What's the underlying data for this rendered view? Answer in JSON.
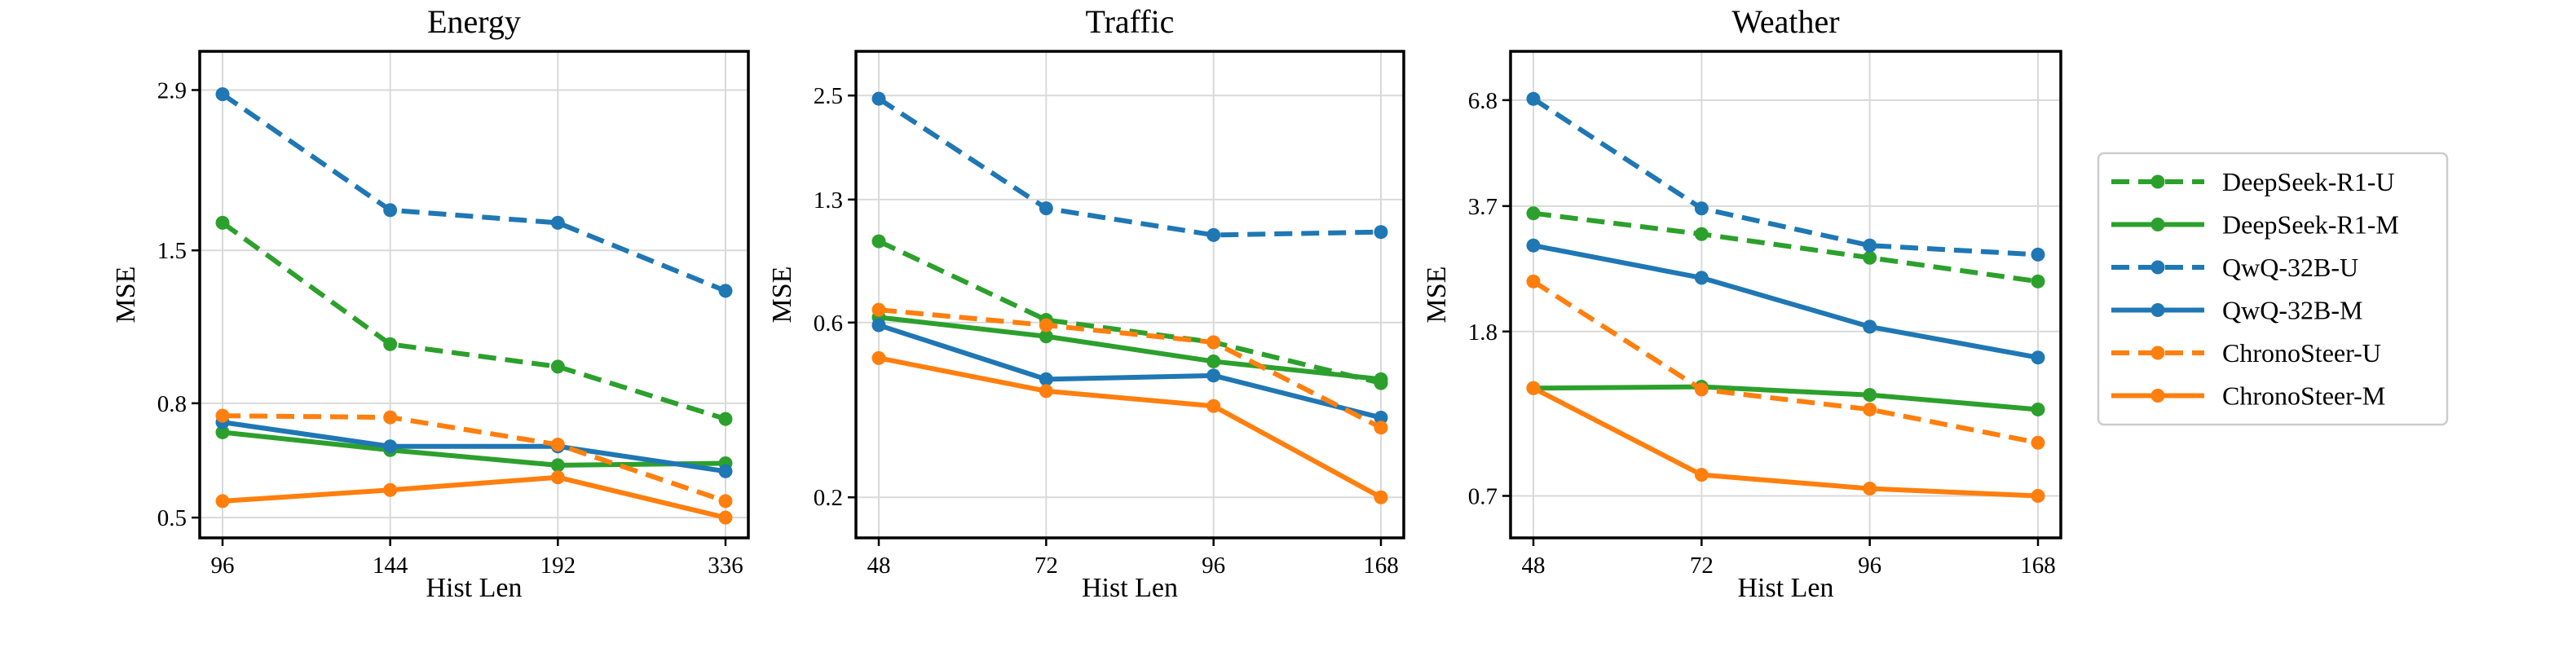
{
  "colors": {
    "deepseek": "#2ca02c",
    "qwq": "#1f77b4",
    "chrono": "#ff7f0e",
    "grid": "#d9d9d9"
  },
  "legend": {
    "placement": "right",
    "entries": [
      {
        "name": "DeepSeek-R1-U",
        "color": "#2ca02c",
        "dash": true
      },
      {
        "name": "DeepSeek-R1-M",
        "color": "#2ca02c",
        "dash": false
      },
      {
        "name": "QwQ-32B-U",
        "color": "#1f77b4",
        "dash": true
      },
      {
        "name": "QwQ-32B-M",
        "color": "#1f77b4",
        "dash": false
      },
      {
        "name": "ChronoSteer-U",
        "color": "#ff7f0e",
        "dash": true
      },
      {
        "name": "ChronoSteer-M",
        "color": "#ff7f0e",
        "dash": false
      }
    ]
  },
  "chart_data": [
    {
      "type": "line",
      "title": "Energy",
      "xlabel": "Hist Len",
      "ylabel": "MSE",
      "y_scale": "log",
      "grid": true,
      "categories": [
        "96",
        "144",
        "192",
        "336"
      ],
      "yticks": [
        0.5,
        0.8,
        1.5,
        2.9
      ],
      "ytick_labels": [
        "0.5",
        "0.8",
        "1.5",
        "2.9"
      ],
      "ylim": [
        0.46,
        3.4
      ],
      "series": [
        {
          "name": "DeepSeek-R1-U",
          "values": [
            1.68,
            1.02,
            0.93,
            0.75
          ]
        },
        {
          "name": "DeepSeek-R1-M",
          "values": [
            0.71,
            0.66,
            0.62,
            0.625
          ]
        },
        {
          "name": "QwQ-32B-U",
          "values": [
            2.85,
            1.77,
            1.68,
            1.27
          ]
        },
        {
          "name": "QwQ-32B-M",
          "values": [
            0.74,
            0.67,
            0.67,
            0.605
          ]
        },
        {
          "name": "ChronoSteer-U",
          "values": [
            0.76,
            0.755,
            0.675,
            0.535
          ]
        },
        {
          "name": "ChronoSteer-M",
          "values": [
            0.535,
            0.56,
            0.59,
            0.5
          ]
        }
      ]
    },
    {
      "type": "line",
      "title": "Traffic",
      "xlabel": "Hist Len",
      "ylabel": "MSE",
      "y_scale": "log",
      "grid": true,
      "categories": [
        "48",
        "72",
        "96",
        "168"
      ],
      "yticks": [
        0.2,
        0.6,
        1.3,
        2.5
      ],
      "ytick_labels": [
        "0.2",
        "0.6",
        "1.3",
        "2.5"
      ],
      "ylim": [
        0.155,
        3.3
      ],
      "series": [
        {
          "name": "DeepSeek-R1-U",
          "values": [
            1.0,
            0.61,
            0.53,
            0.41
          ]
        },
        {
          "name": "DeepSeek-R1-M",
          "values": [
            0.62,
            0.55,
            0.47,
            0.42
          ]
        },
        {
          "name": "QwQ-32B-U",
          "values": [
            2.45,
            1.23,
            1.04,
            1.06
          ]
        },
        {
          "name": "QwQ-32B-M",
          "values": [
            0.59,
            0.42,
            0.43,
            0.33
          ]
        },
        {
          "name": "ChronoSteer-U",
          "values": [
            0.65,
            0.59,
            0.53,
            0.31
          ]
        },
        {
          "name": "ChronoSteer-M",
          "values": [
            0.48,
            0.39,
            0.355,
            0.2
          ]
        }
      ]
    },
    {
      "type": "line",
      "title": "Weather",
      "xlabel": "Hist Len",
      "ylabel": "MSE",
      "y_scale": "log",
      "grid": true,
      "categories": [
        "48",
        "72",
        "96",
        "168"
      ],
      "yticks": [
        0.7,
        1.8,
        3.7,
        6.8
      ],
      "ytick_labels": [
        "0.7",
        "1.8",
        "3.7",
        "6.8"
      ],
      "ylim": [
        0.55,
        9.0
      ],
      "series": [
        {
          "name": "DeepSeek-R1-U",
          "values": [
            3.55,
            3.15,
            2.75,
            2.4
          ]
        },
        {
          "name": "DeepSeek-R1-M",
          "values": [
            1.3,
            1.31,
            1.25,
            1.15
          ]
        },
        {
          "name": "QwQ-32B-U",
          "values": [
            6.85,
            3.65,
            2.95,
            2.8
          ]
        },
        {
          "name": "QwQ-32B-M",
          "values": [
            2.95,
            2.45,
            1.85,
            1.55
          ]
        },
        {
          "name": "ChronoSteer-U",
          "values": [
            2.4,
            1.29,
            1.15,
            0.95
          ]
        },
        {
          "name": "ChronoSteer-M",
          "values": [
            1.3,
            0.79,
            0.73,
            0.7
          ]
        }
      ]
    }
  ]
}
